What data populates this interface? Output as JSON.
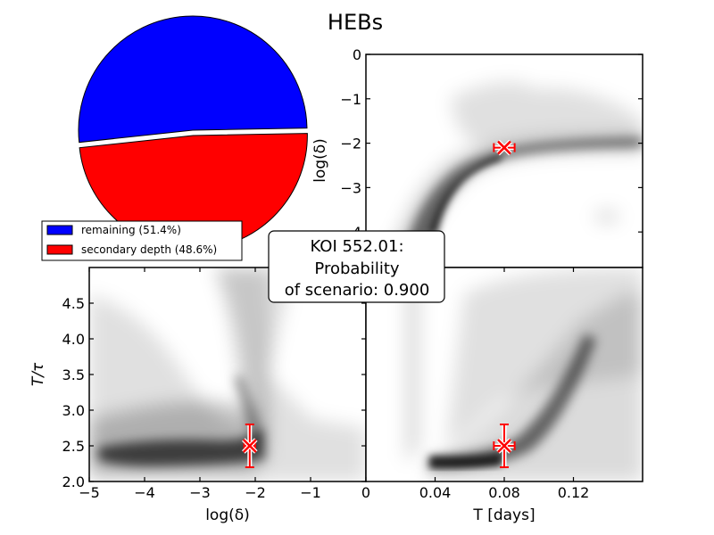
{
  "title": "HEBs",
  "annotation": {
    "lines": [
      "KOI 552.01:",
      "Probability",
      "of scenario: 0.900"
    ]
  },
  "chart_data": [
    {
      "type": "pie",
      "panel": "top-left",
      "slices": [
        {
          "label": "remaining (51.4%)",
          "value": 51.4,
          "color": "#0000ff"
        },
        {
          "label": "secondary depth (48.6%)",
          "value": 48.6,
          "color": "#ff0000",
          "exploded": true
        }
      ],
      "legend_position": "bottom-left"
    },
    {
      "type": "heatmap",
      "panel": "top-right",
      "xlabel": "",
      "ylabel": "log(δ)",
      "xlim": [
        0,
        0.16
      ],
      "ylim": [
        -4.8,
        0
      ],
      "y_ticks": [
        "0",
        "−1",
        "−2",
        "−3",
        "−4"
      ],
      "y_tick_values": [
        0,
        -1,
        -2,
        -3,
        -4
      ],
      "marker": {
        "x": 0.08,
        "y": -2.1,
        "xerr": 0.006,
        "yerr": 0.05,
        "color": "#ff0000"
      },
      "description_hidden": "dense grey band from lower-left curving up to a plateau near log(δ)≈-2"
    },
    {
      "type": "heatmap",
      "panel": "bottom-left",
      "xlabel": "log(δ)",
      "ylabel": "T/τ",
      "xlim": [
        -5,
        0
      ],
      "ylim": [
        2.0,
        5.0
      ],
      "x_ticks": [
        "−5",
        "−4",
        "−3",
        "−2",
        "−1"
      ],
      "x_tick_values": [
        -5,
        -4,
        -3,
        -2,
        -1
      ],
      "y_ticks": [
        "2.0",
        "2.5",
        "3.0",
        "3.5",
        "4.0",
        "4.5"
      ],
      "y_tick_values": [
        2.0,
        2.5,
        3.0,
        3.5,
        4.0,
        4.5
      ],
      "marker": {
        "x": -2.1,
        "y": 2.5,
        "xerr": 0.1,
        "yerr": 0.3,
        "color": "#ff0000"
      }
    },
    {
      "type": "heatmap",
      "panel": "bottom-right",
      "xlabel": "T [days]",
      "ylabel": "",
      "xlim": [
        0,
        0.16
      ],
      "ylim": [
        2.0,
        5.0
      ],
      "x_ticks": [
        "0",
        "0.04",
        "0.08",
        "0.12"
      ],
      "x_tick_values": [
        0,
        0.04,
        0.08,
        0.12
      ],
      "marker": {
        "x": 0.08,
        "y": 2.5,
        "xerr": 0.006,
        "yerr": 0.3,
        "color": "#ff0000"
      }
    }
  ]
}
